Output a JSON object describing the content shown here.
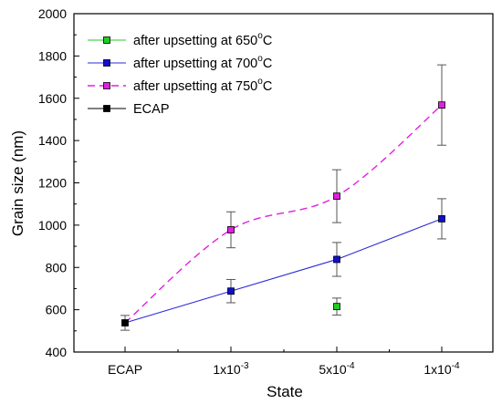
{
  "chart_data": {
    "type": "line",
    "title": "",
    "xlabel": "State",
    "ylabel": "Grain size (nm)",
    "categories": [
      "ECAP",
      "1x10^-3",
      "5x10^-4",
      "1x10^-4"
    ],
    "category_labels": [
      {
        "base": "ECAP",
        "exp": ""
      },
      {
        "base": "1x10",
        "exp": "-3"
      },
      {
        "base": "5x10",
        "exp": "-4"
      },
      {
        "base": "1x10",
        "exp": "-4"
      }
    ],
    "ylim": [
      400,
      2000
    ],
    "yticks": [
      400,
      600,
      800,
      1000,
      1200,
      1400,
      1600,
      1800,
      2000
    ],
    "grid": false,
    "legend_position": "top-left",
    "series": [
      {
        "name": "after upsetting at 650",
        "name_sup": "o",
        "name_suffix": "C",
        "color": "#22cc22",
        "line": "solid",
        "points": [
          {
            "x": 2,
            "y": 615,
            "err": 40
          }
        ]
      },
      {
        "name": "after upsetting at 700",
        "name_sup": "o",
        "name_suffix": "C",
        "color": "#2b2bd6",
        "line": "solid",
        "marker_color": "#1010cc",
        "points": [
          {
            "x": 0,
            "y": 538,
            "err": 0
          },
          {
            "x": 1,
            "y": 688,
            "err": 55
          },
          {
            "x": 2,
            "y": 838,
            "err": 80
          },
          {
            "x": 3,
            "y": 1030,
            "err": 95
          }
        ]
      },
      {
        "name": "after upsetting at 750",
        "name_sup": "o",
        "name_suffix": "C",
        "color": "#e020e0",
        "line": "dashed",
        "points": [
          {
            "x": 0,
            "y": 538,
            "err": 0
          },
          {
            "x": 1,
            "y": 978,
            "err": 85
          },
          {
            "x": 2,
            "y": 1137,
            "err": 125
          },
          {
            "x": 3,
            "y": 1568,
            "err": 190
          }
        ]
      },
      {
        "name": "ECAP",
        "name_sup": "",
        "name_suffix": "",
        "color": "#000000",
        "line": "solid",
        "points": [
          {
            "x": 0,
            "y": 538,
            "err": 35
          }
        ]
      }
    ]
  }
}
